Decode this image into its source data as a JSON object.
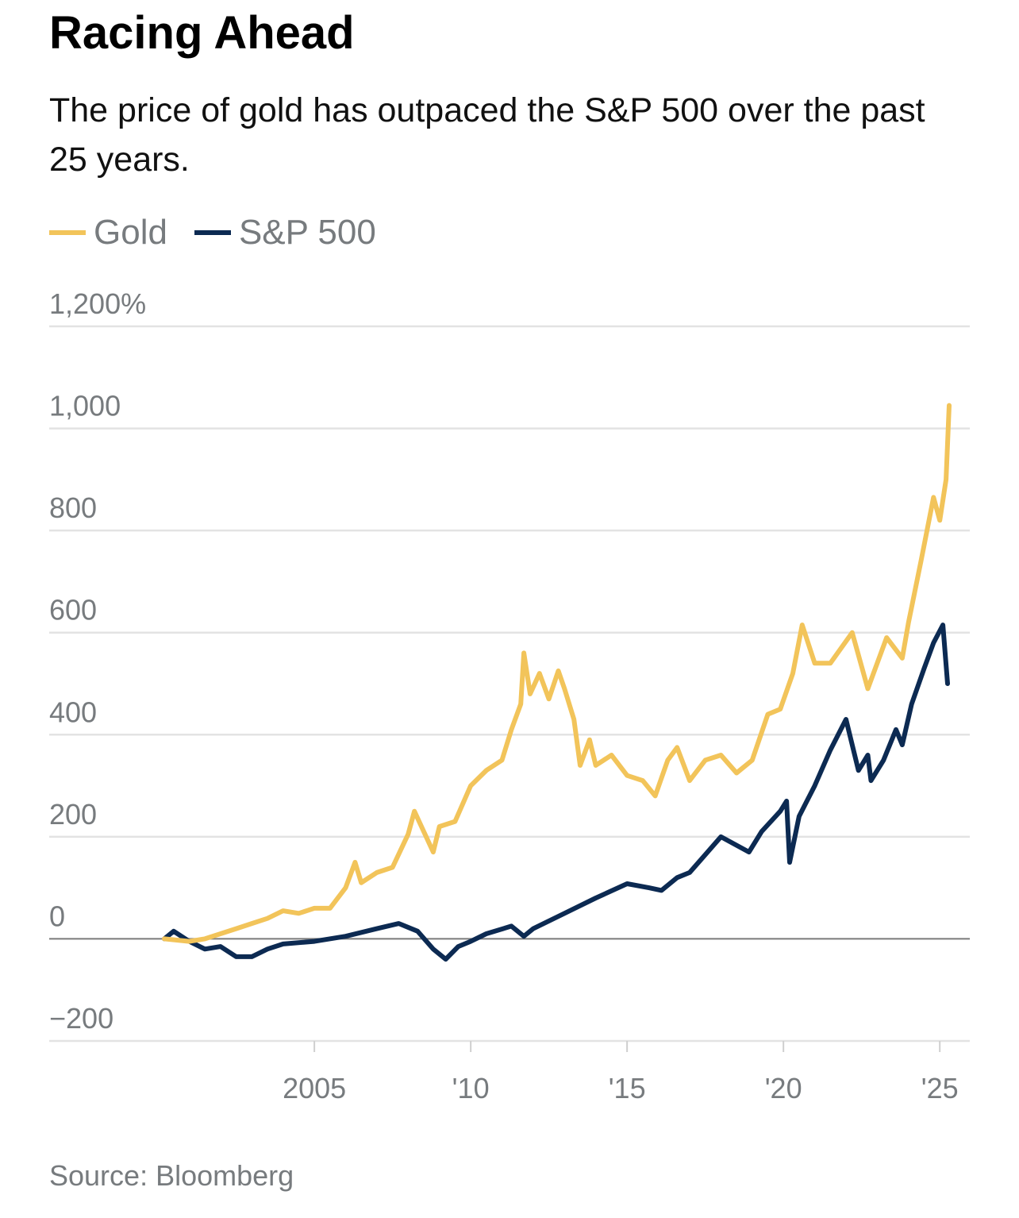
{
  "chart_data": {
    "type": "line",
    "title": "Racing Ahead",
    "subtitle": "The price of gold has outpaced the S&P 500 over the past 25 years.",
    "source": "Source: Bloomberg",
    "xlim": [
      1996.52,
      2025.96
    ],
    "xticks": [
      2005,
      {
        "value": 2010,
        "label": "'10"
      },
      {
        "value": 2015,
        "label": "'15"
      },
      {
        "value": 2020,
        "label": "'20"
      },
      {
        "value": 2025,
        "label": "'25"
      }
    ],
    "ylim": [
      -200,
      1200
    ],
    "yticks": [
      {
        "value": -200,
        "label": "−200"
      },
      0,
      200,
      400,
      600,
      800,
      {
        "value": 1000,
        "label": "1,000"
      },
      {
        "value": 1200,
        "label": "1,200%"
      }
    ],
    "grid": true,
    "series": [
      {
        "name": "Gold",
        "color": "#f2c45a",
        "x": [
          2000.2,
          2001,
          2001.5,
          2002,
          2002.5,
          2003,
          2003.5,
          2004,
          2004.5,
          2005,
          2005.5,
          2006,
          2006.3,
          2006.5,
          2007,
          2007.5,
          2008,
          2008.2,
          2008.5,
          2008.8,
          2009,
          2009.5,
          2010,
          2010.5,
          2011,
          2011.3,
          2011.6,
          2011.7,
          2011.9,
          2012.2,
          2012.5,
          2012.8,
          2013,
          2013.3,
          2013.5,
          2013.8,
          2014,
          2014.5,
          2015,
          2015.5,
          2015.9,
          2016.3,
          2016.6,
          2017,
          2017.5,
          2018,
          2018.5,
          2019,
          2019.5,
          2019.9,
          2020.3,
          2020.6,
          2021,
          2021.5,
          2022.2,
          2022.7,
          2023.3,
          2023.8,
          2024,
          2024.4,
          2024.8,
          2025,
          2025.2,
          2025.3
        ],
        "values": [
          0,
          -5,
          0,
          10,
          20,
          30,
          40,
          55,
          50,
          60,
          60,
          100,
          150,
          110,
          130,
          140,
          205,
          250,
          210,
          170,
          220,
          230,
          300,
          330,
          350,
          410,
          460,
          560,
          480,
          520,
          470,
          525,
          490,
          430,
          340,
          390,
          340,
          360,
          320,
          310,
          280,
          350,
          375,
          310,
          350,
          360,
          325,
          350,
          440,
          450,
          520,
          615,
          540,
          540,
          600,
          490,
          590,
          550,
          620,
          740,
          865,
          820,
          900,
          1045
        ]
      },
      {
        "name": "S&P 500",
        "color": "#0c2a52",
        "x": [
          2000.2,
          2000.5,
          2001,
          2001.5,
          2002,
          2002.5,
          2003,
          2003.5,
          2004,
          2005,
          2006,
          2007,
          2007.7,
          2008.3,
          2008.8,
          2009.2,
          2009.6,
          2010,
          2010.5,
          2011.3,
          2011.7,
          2012,
          2013,
          2014,
          2015,
          2015.7,
          2016.1,
          2016.6,
          2017,
          2018,
          2018.9,
          2019.3,
          2019.9,
          2020.1,
          2020.2,
          2020.5,
          2021,
          2021.5,
          2022,
          2022.4,
          2022.7,
          2022.8,
          2023.2,
          2023.6,
          2023.8,
          2024.1,
          2024.5,
          2024.8,
          2025.1,
          2025.25
        ],
        "values": [
          0,
          15,
          -5,
          -20,
          -15,
          -35,
          -35,
          -20,
          -10,
          -5,
          5,
          20,
          30,
          15,
          -20,
          -40,
          -15,
          -5,
          10,
          25,
          5,
          20,
          50,
          80,
          108,
          100,
          95,
          120,
          130,
          200,
          170,
          210,
          250,
          270,
          150,
          240,
          300,
          370,
          430,
          330,
          360,
          310,
          350,
          410,
          380,
          460,
          530,
          580,
          615,
          500
        ]
      }
    ]
  }
}
